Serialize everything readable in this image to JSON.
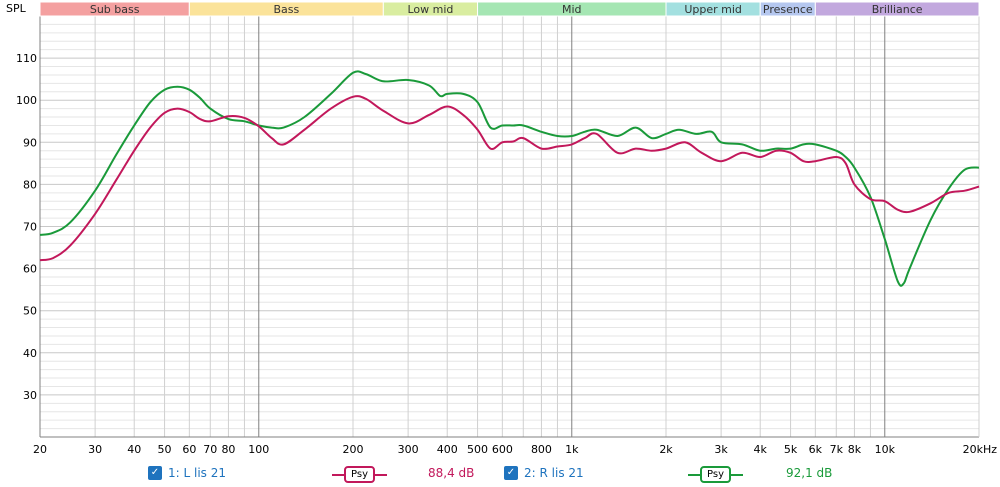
{
  "chart_data": {
    "type": "line",
    "ylabel": "SPL",
    "x_scale": "log",
    "xlim": [
      20,
      20000
    ],
    "ylim": [
      20,
      120
    ],
    "y_ticks": [
      30,
      40,
      50,
      60,
      70,
      80,
      90,
      100,
      110
    ],
    "x_ticks": [
      {
        "v": 20,
        "label": "20"
      },
      {
        "v": 30,
        "label": "30"
      },
      {
        "v": 40,
        "label": "40"
      },
      {
        "v": 50,
        "label": "50"
      },
      {
        "v": 60,
        "label": "60"
      },
      {
        "v": 70,
        "label": "70"
      },
      {
        "v": 80,
        "label": "80"
      },
      {
        "v": 100,
        "label": "100"
      },
      {
        "v": 200,
        "label": "200"
      },
      {
        "v": 300,
        "label": "300"
      },
      {
        "v": 400,
        "label": "400"
      },
      {
        "v": 500,
        "label": "500"
      },
      {
        "v": 600,
        "label": "600"
      },
      {
        "v": 800,
        "label": "800"
      },
      {
        "v": 1000,
        "label": "1k"
      },
      {
        "v": 2000,
        "label": "2k"
      },
      {
        "v": 3000,
        "label": "3k"
      },
      {
        "v": 4000,
        "label": "4k"
      },
      {
        "v": 5000,
        "label": "5k"
      },
      {
        "v": 6000,
        "label": "6k"
      },
      {
        "v": 7000,
        "label": "7k"
      },
      {
        "v": 8000,
        "label": "8k"
      },
      {
        "v": 10000,
        "label": "10k"
      },
      {
        "v": 20000,
        "label": "20kHz"
      }
    ],
    "bands": [
      {
        "label": "Sub bass",
        "from": 20,
        "to": 60,
        "color": "#f4a0a0"
      },
      {
        "label": "Bass",
        "from": 60,
        "to": 250,
        "color": "#fbe39a"
      },
      {
        "label": "Low mid",
        "from": 250,
        "to": 500,
        "color": "#d9eda0"
      },
      {
        "label": "Mid",
        "from": 500,
        "to": 2000,
        "color": "#a5e6b3"
      },
      {
        "label": "Upper mid",
        "from": 2000,
        "to": 4000,
        "color": "#a3e0e0"
      },
      {
        "label": "Presence",
        "from": 4000,
        "to": 6000,
        "color": "#b5c7ef"
      },
      {
        "label": "Brilliance",
        "from": 6000,
        "to": 20000,
        "color": "#c2a8de"
      }
    ],
    "series": [
      {
        "name": "1: L lis 21",
        "color": "#c2185b",
        "points": [
          [
            20,
            62
          ],
          [
            22,
            62.5
          ],
          [
            25,
            65.5
          ],
          [
            30,
            73
          ],
          [
            35,
            81
          ],
          [
            40,
            88
          ],
          [
            45,
            93.5
          ],
          [
            50,
            97
          ],
          [
            55,
            98
          ],
          [
            60,
            97.2
          ],
          [
            65,
            95.5
          ],
          [
            70,
            95
          ],
          [
            80,
            96.2
          ],
          [
            90,
            95.8
          ],
          [
            100,
            93.8
          ],
          [
            110,
            91
          ],
          [
            120,
            89.5
          ],
          [
            140,
            93
          ],
          [
            170,
            98
          ],
          [
            200,
            100.8
          ],
          [
            220,
            100.3
          ],
          [
            250,
            97.5
          ],
          [
            300,
            94.5
          ],
          [
            350,
            96.5
          ],
          [
            400,
            98.5
          ],
          [
            450,
            96.5
          ],
          [
            500,
            93
          ],
          [
            550,
            88.5
          ],
          [
            600,
            90
          ],
          [
            650,
            90.2
          ],
          [
            700,
            91
          ],
          [
            800,
            88.5
          ],
          [
            900,
            89
          ],
          [
            1000,
            89.5
          ],
          [
            1100,
            91
          ],
          [
            1200,
            92
          ],
          [
            1400,
            87.5
          ],
          [
            1600,
            88.5
          ],
          [
            1800,
            88
          ],
          [
            2000,
            88.5
          ],
          [
            2300,
            90
          ],
          [
            2600,
            87.5
          ],
          [
            3000,
            85.5
          ],
          [
            3500,
            87.5
          ],
          [
            4000,
            86.5
          ],
          [
            4500,
            88
          ],
          [
            5000,
            87.5
          ],
          [
            5500,
            85.5
          ],
          [
            6000,
            85.5
          ],
          [
            7000,
            86.5
          ],
          [
            7500,
            85
          ],
          [
            8000,
            80
          ],
          [
            9000,
            76.5
          ],
          [
            10000,
            76
          ],
          [
            11000,
            74
          ],
          [
            12000,
            73.5
          ],
          [
            14000,
            75.5
          ],
          [
            16000,
            78
          ],
          [
            18000,
            78.5
          ],
          [
            20000,
            79.5
          ]
        ]
      },
      {
        "name": "2: R lis 21",
        "color": "#1a9a3a",
        "points": [
          [
            20,
            68
          ],
          [
            22,
            68.5
          ],
          [
            25,
            71
          ],
          [
            30,
            78.5
          ],
          [
            35,
            87
          ],
          [
            40,
            94
          ],
          [
            45,
            99.5
          ],
          [
            50,
            102.5
          ],
          [
            55,
            103.2
          ],
          [
            60,
            102.5
          ],
          [
            65,
            100.5
          ],
          [
            70,
            98
          ],
          [
            80,
            95.5
          ],
          [
            90,
            95
          ],
          [
            100,
            94
          ],
          [
            110,
            93.5
          ],
          [
            120,
            93.5
          ],
          [
            140,
            96
          ],
          [
            170,
            101.5
          ],
          [
            200,
            106.5
          ],
          [
            220,
            106.2
          ],
          [
            250,
            104.5
          ],
          [
            300,
            104.8
          ],
          [
            350,
            103.5
          ],
          [
            380,
            101
          ],
          [
            400,
            101.5
          ],
          [
            450,
            101.5
          ],
          [
            500,
            99.5
          ],
          [
            550,
            93.5
          ],
          [
            600,
            94
          ],
          [
            650,
            94
          ],
          [
            700,
            94
          ],
          [
            800,
            92.5
          ],
          [
            900,
            91.5
          ],
          [
            1000,
            91.5
          ],
          [
            1100,
            92.5
          ],
          [
            1200,
            93
          ],
          [
            1400,
            91.5
          ],
          [
            1600,
            93.5
          ],
          [
            1800,
            91
          ],
          [
            2000,
            92
          ],
          [
            2200,
            93
          ],
          [
            2500,
            92
          ],
          [
            2800,
            92.5
          ],
          [
            3000,
            90
          ],
          [
            3500,
            89.5
          ],
          [
            4000,
            88
          ],
          [
            4500,
            88.5
          ],
          [
            5000,
            88.5
          ],
          [
            5500,
            89.5
          ],
          [
            6000,
            89.5
          ],
          [
            7000,
            88
          ],
          [
            7500,
            86.5
          ],
          [
            8000,
            84
          ],
          [
            9000,
            77
          ],
          [
            10000,
            67
          ],
          [
            11000,
            57
          ],
          [
            11500,
            56.5
          ],
          [
            12000,
            60
          ],
          [
            14000,
            71.5
          ],
          [
            16000,
            79
          ],
          [
            18000,
            83.5
          ],
          [
            20000,
            84
          ]
        ]
      }
    ]
  },
  "legend": {
    "entry1": {
      "check": "✓",
      "label": "1: L lis 21",
      "smoothing": "Psy",
      "value": "88,4 dB",
      "color": "#c2185b",
      "label_color": "#1e73be"
    },
    "entry2": {
      "check": "✓",
      "label": "2: R lis 21",
      "smoothing": "Psy",
      "value": "92,1 dB",
      "color": "#1a9a3a",
      "label_color": "#1e73be"
    }
  }
}
